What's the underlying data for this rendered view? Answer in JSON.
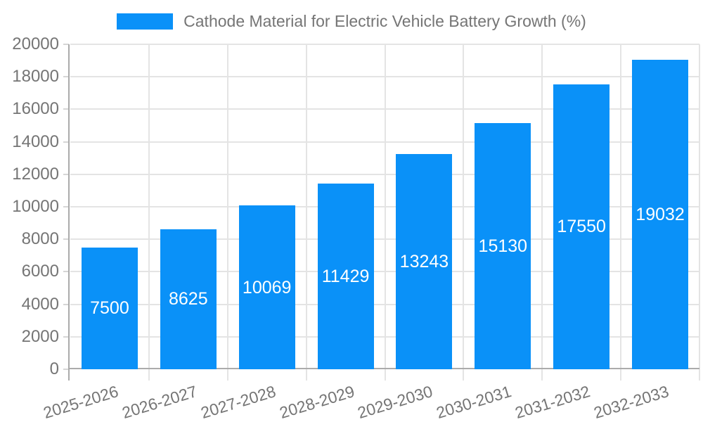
{
  "legend": {
    "label": "Cathode Material for Electric Vehicle Battery Growth (%)"
  },
  "chart_data": {
    "type": "bar",
    "title": "Cathode Material for Electric Vehicle Battery Growth (%)",
    "series_name": "Cathode Material for Electric Vehicle Battery Growth (%)",
    "categories": [
      "2025-2026",
      "2026-2027",
      "2027-2028",
      "2028-2029",
      "2029-2030",
      "2030-2031",
      "2031-2032",
      "2032-2033"
    ],
    "values": [
      7500,
      8625,
      10069,
      11429,
      13243,
      15130,
      17550,
      19032
    ],
    "data_labels": [
      "7500",
      "8625",
      "10069",
      "11429",
      "13243",
      "15130",
      "17550",
      "19032"
    ],
    "xlabel": "",
    "ylabel": "",
    "ylim": [
      0,
      20000
    ],
    "y_ticks": [
      0,
      2000,
      4000,
      6000,
      8000,
      10000,
      12000,
      14000,
      16000,
      18000,
      20000
    ],
    "grid": true,
    "legend_position": "top-center",
    "bar_label_position": "middle-of-bar",
    "x_label_rotation_deg": -17,
    "colors": {
      "bar": "#0a91f8",
      "bar_label": "#ffffff",
      "axis_text": "#757575",
      "grid": "#e4e4e4",
      "axis_line": "#ababab",
      "tick": "#d6d6d6",
      "background": "#ffffff"
    }
  }
}
